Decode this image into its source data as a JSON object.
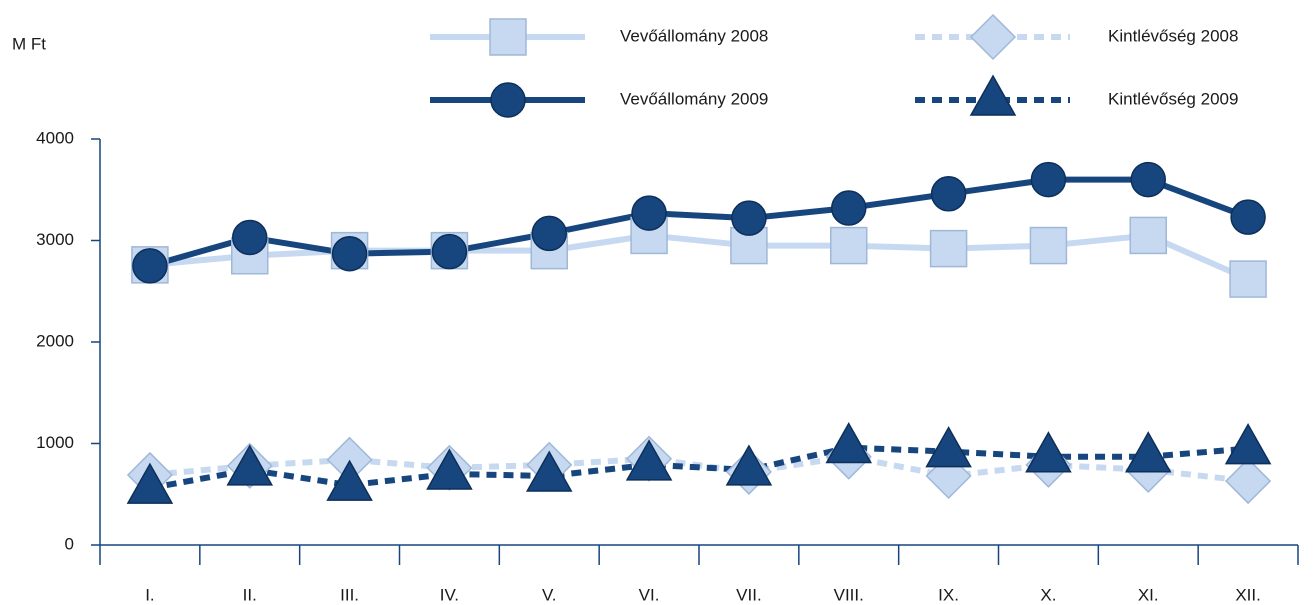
{
  "chart_data": {
    "type": "line",
    "y_axis_label": "M  Ft",
    "categories": [
      "I.",
      "II.",
      "III.",
      "IV.",
      "V.",
      "VI.",
      "VII.",
      "VIII.",
      "IX.",
      "X.",
      "XI.",
      "XII."
    ],
    "series": [
      {
        "name": "Vevőállomány 2008",
        "color": "#c6d9f0",
        "marker": "square",
        "dashed": false,
        "values": [
          2760,
          2850,
          2900,
          2900,
          2900,
          3050,
          2950,
          2950,
          2920,
          2950,
          3050,
          2620
        ]
      },
      {
        "name": "Kintlévőség 2008",
        "color": "#c6d9f0",
        "marker": "diamond",
        "dashed": true,
        "values": [
          690,
          780,
          840,
          760,
          790,
          850,
          720,
          870,
          680,
          790,
          740,
          630
        ]
      },
      {
        "name": "Vevőállomány 2009",
        "color": "#17467f",
        "marker": "circle",
        "dashed": false,
        "values": [
          2750,
          3030,
          2870,
          2890,
          3070,
          3270,
          3220,
          3320,
          3460,
          3600,
          3600,
          3230
        ]
      },
      {
        "name": "Kintlévőség 2009",
        "color": "#17467f",
        "marker": "triangle",
        "dashed": true,
        "values": [
          560,
          740,
          590,
          700,
          680,
          790,
          740,
          960,
          920,
          870,
          870,
          950
        ]
      }
    ],
    "ylim": [
      0,
      4000
    ],
    "yticks": [
      0,
      1000,
      2000,
      3000,
      4000
    ]
  }
}
